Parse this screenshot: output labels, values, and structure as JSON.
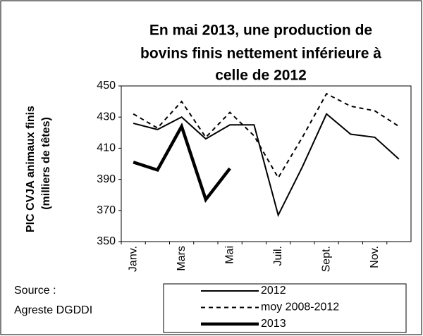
{
  "chart_data": {
    "type": "line",
    "title_lines": [
      "En mai 2013, une production de",
      "bovins finis nettement inférieure à",
      "celle de 2012"
    ],
    "y_label_lines": [
      "PIC CVJA animaux finis",
      "(milliers de têtes)"
    ],
    "source_lines": [
      "Source :",
      "Agreste DGDDI"
    ],
    "categories": [
      "Janv.",
      null,
      "Mars",
      null,
      "Mai",
      null,
      "Juil.",
      null,
      "Sept.",
      null,
      "Nov.",
      null
    ],
    "series": [
      {
        "name": "2012",
        "color": "#000000",
        "line_style": "solid",
        "width": 2,
        "values": [
          426,
          422,
          430,
          416,
          425,
          425,
          367,
          398,
          432,
          419,
          417,
          403
        ]
      },
      {
        "name": "moy 2008-2012",
        "color": "#000000",
        "line_style": "dashed",
        "width": 2,
        "values": [
          432,
          423,
          440,
          417,
          433,
          418,
          391,
          417,
          445,
          437,
          434,
          424
        ]
      },
      {
        "name": "2013",
        "color": "#000000",
        "line_style": "solid",
        "width": 4.5,
        "values": [
          401,
          396,
          424,
          377,
          397,
          null,
          null,
          null,
          null,
          null,
          null,
          null
        ]
      }
    ],
    "ylim": [
      350,
      450
    ],
    "yticks": [
      350,
      370,
      390,
      410,
      430,
      450
    ],
    "grid": false
  }
}
